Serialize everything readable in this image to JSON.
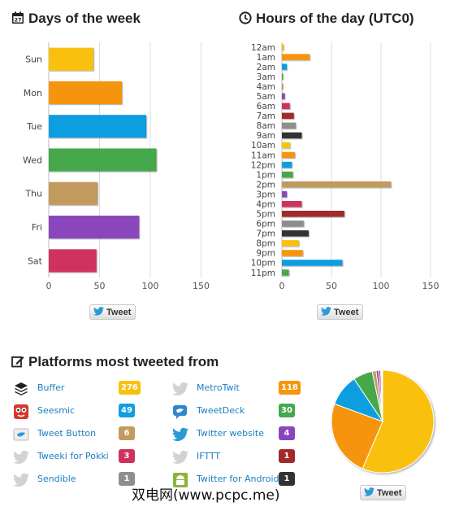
{
  "days": {
    "title": "Days of the week",
    "icon": "calendar-icon",
    "tweet_label": "Tweet",
    "chart_data": {
      "type": "bar",
      "orientation": "horizontal",
      "categories": [
        "Sun",
        "Mon",
        "Tue",
        "Wed",
        "Thu",
        "Fri",
        "Sat"
      ],
      "values": [
        44,
        72,
        96,
        106,
        48,
        89,
        47
      ],
      "colors": [
        "#f9c10f",
        "#f6950e",
        "#109ee0",
        "#44a84c",
        "#c39a5d",
        "#8a46bd",
        "#d0305e"
      ],
      "xlim": [
        0,
        165
      ],
      "xticks": [
        0,
        50,
        100,
        150
      ],
      "grid": true
    }
  },
  "hours": {
    "title": "Hours of the day (UTC0)",
    "icon": "clock-icon",
    "tweet_label": "Tweet",
    "chart_data": {
      "type": "bar",
      "orientation": "horizontal",
      "categories": [
        "12am",
        "1am",
        "2am",
        "3am",
        "4am",
        "5am",
        "6am",
        "7am",
        "8am",
        "9am",
        "10am",
        "11am",
        "12pm",
        "1pm",
        "2pm",
        "3pm",
        "4pm",
        "5pm",
        "6pm",
        "7pm",
        "8pm",
        "9pm",
        "10pm",
        "11pm"
      ],
      "values": [
        2,
        28,
        5,
        1,
        1,
        3,
        8,
        12,
        14,
        20,
        8,
        13,
        10,
        11,
        110,
        5,
        20,
        63,
        22,
        27,
        17,
        21,
        61,
        7
      ],
      "colors": [
        "#f9c10f",
        "#f6950e",
        "#109ee0",
        "#44a84c",
        "#c39a5d",
        "#8a46bd",
        "#d0305e",
        "#a12a2a",
        "#8e8e8e",
        "#333333",
        "#f9c10f",
        "#f6950e",
        "#109ee0",
        "#44a84c",
        "#c39a5d",
        "#8a46bd",
        "#d0305e",
        "#a12a2a",
        "#8e8e8e",
        "#333333",
        "#f9c10f",
        "#f6950e",
        "#109ee0",
        "#44a84c"
      ],
      "xlim": [
        0,
        165
      ],
      "xticks": [
        0,
        50,
        100,
        150
      ],
      "grid": true
    }
  },
  "platforms": {
    "title": "Platforms most tweeted from",
    "icon": "edit-icon",
    "tweet_label": "Tweet",
    "items": [
      {
        "name": "Buffer",
        "count": "276",
        "color": "#f9c10f",
        "icon": "buffer-layers-icon"
      },
      {
        "name": "MetroTwit",
        "count": "118",
        "color": "#f6950e",
        "icon": "bird-icon"
      },
      {
        "name": "Seesmic",
        "count": "49",
        "color": "#109ee0",
        "icon": "seesmic-icon"
      },
      {
        "name": "TweetDeck",
        "count": "30",
        "color": "#44a84c",
        "icon": "tweetdeck-icon"
      },
      {
        "name": "Tweet Button",
        "count": "6",
        "color": "#c39a5d",
        "icon": "twitter-button-icon"
      },
      {
        "name": "Twitter website",
        "count": "4",
        "color": "#8a46bd",
        "icon": "twitter-bird-icon"
      },
      {
        "name": "Tweeki for Pokki",
        "count": "3",
        "color": "#d0305e",
        "icon": "bird-icon"
      },
      {
        "name": "IFTTT",
        "count": "1",
        "color": "#a12a2a",
        "icon": "bird-icon"
      },
      {
        "name": "Sendible",
        "count": "1",
        "color": "#8e8e8e",
        "icon": "bird-icon"
      },
      {
        "name": "Twitter for Android",
        "count": "1",
        "color": "#333333",
        "icon": "android-icon"
      }
    ],
    "chart_data": {
      "type": "pie",
      "categories": [
        "Buffer",
        "MetroTwit",
        "Seesmic",
        "TweetDeck",
        "Tweet Button",
        "Twitter website",
        "Tweeki for Pokki",
        "IFTTT",
        "Sendible",
        "Twitter for Android"
      ],
      "values": [
        276,
        118,
        49,
        30,
        6,
        4,
        3,
        1,
        1,
        1
      ],
      "colors": [
        "#f9c10f",
        "#f6950e",
        "#109ee0",
        "#44a84c",
        "#c39a5d",
        "#8a46bd",
        "#d0305e",
        "#a12a2a",
        "#8e8e8e",
        "#333333"
      ]
    }
  },
  "watermark": "双电网(www.pcpc.me)"
}
